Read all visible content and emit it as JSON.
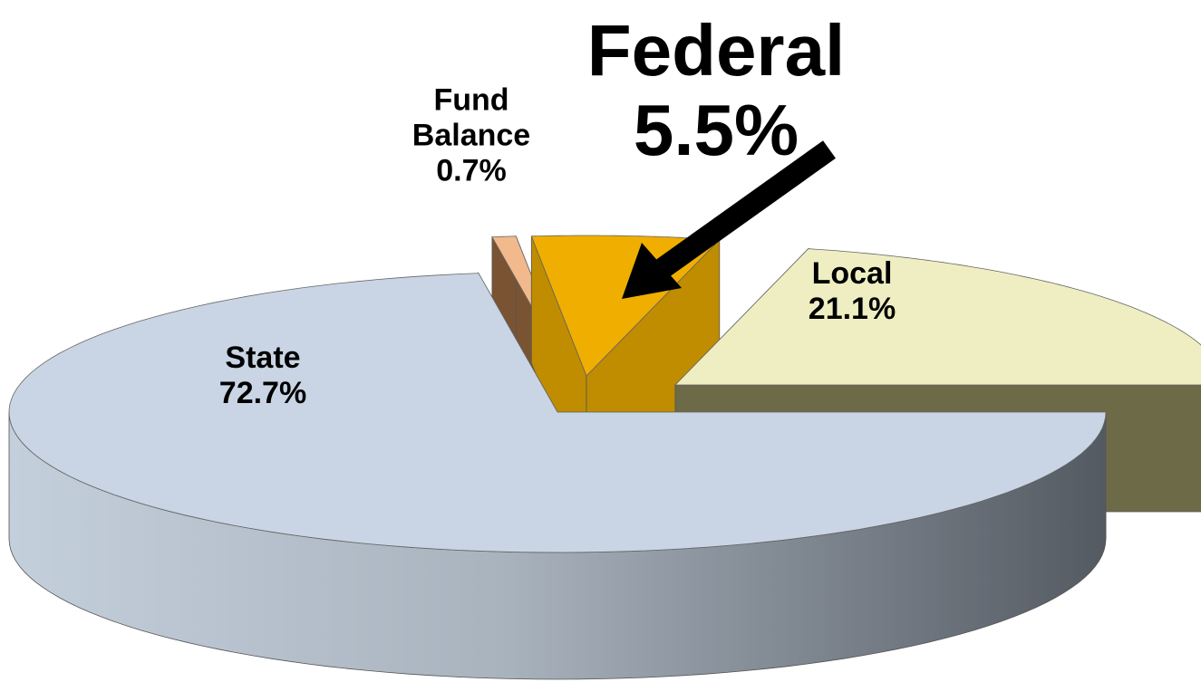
{
  "chart_data": {
    "type": "pie",
    "categories": [
      "State",
      "Fund Balance",
      "Federal",
      "Local"
    ],
    "values": [
      72.7,
      0.7,
      5.5,
      21.1
    ],
    "value_labels": [
      "72.7%",
      "0.7%",
      "5.5%",
      "21.1%"
    ],
    "colors": [
      "#c9d5e4",
      "#f2b98c",
      "#f0ae00",
      "#eeeec2"
    ]
  }
}
